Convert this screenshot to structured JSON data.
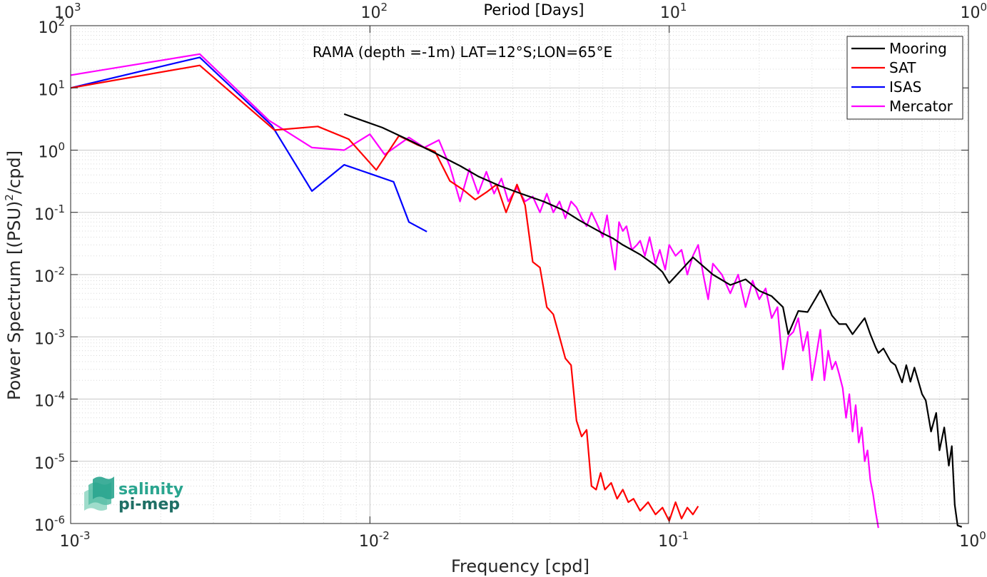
{
  "chart_data": {
    "type": "line",
    "title": "RAMA (depth =-1m) LAT=12°S;LON=65°E",
    "xlabel": "Frequency [cpd]",
    "ylabel": "Power Spectrum [(PSU)²/cpd]",
    "ylabel_parts": {
      "pre": "Power Spectrum [(PSU)",
      "sup": "2",
      "post": "/cpd]"
    },
    "x2label": "Period [Days]",
    "xscale": "log",
    "yscale": "log",
    "xlim": [
      0.001,
      1
    ],
    "ylim": [
      1e-06,
      100
    ],
    "x_ticks": [
      {
        "base": "10",
        "exp": "-3"
      },
      {
        "base": "10",
        "exp": "-2"
      },
      {
        "base": "10",
        "exp": "-1"
      },
      {
        "base": "10",
        "exp": "0"
      }
    ],
    "y_ticks": [
      {
        "base": "10",
        "exp": "-6"
      },
      {
        "base": "10",
        "exp": "-5"
      },
      {
        "base": "10",
        "exp": "-4"
      },
      {
        "base": "10",
        "exp": "-3"
      },
      {
        "base": "10",
        "exp": "-2"
      },
      {
        "base": "10",
        "exp": "-1"
      },
      {
        "base": "10",
        "exp": "0"
      },
      {
        "base": "10",
        "exp": "1"
      },
      {
        "base": "10",
        "exp": "2"
      }
    ],
    "x2_ticks": [
      {
        "base": "10",
        "exp": "3"
      },
      {
        "base": "10",
        "exp": "2"
      },
      {
        "base": "10",
        "exp": "1"
      },
      {
        "base": "10",
        "exp": "0"
      }
    ],
    "grid": true,
    "legend_position": "top-right",
    "series": [
      {
        "name": "Mooring",
        "color": "#000000",
        "x": [
          0.0082,
          0.011,
          0.0135,
          0.0165,
          0.02,
          0.023,
          0.027,
          0.032,
          0.038,
          0.044,
          0.05,
          0.055,
          0.06,
          0.065,
          0.07,
          0.075,
          0.08,
          0.085,
          0.09,
          0.095,
          0.1,
          0.11,
          0.12,
          0.14,
          0.16,
          0.18,
          0.2,
          0.22,
          0.24,
          0.25,
          0.27,
          0.29,
          0.32,
          0.35,
          0.37,
          0.39,
          0.41,
          0.43,
          0.45,
          0.47,
          0.49,
          0.5,
          0.52,
          0.55,
          0.57,
          0.6,
          0.62,
          0.64,
          0.66,
          0.7,
          0.72,
          0.75,
          0.78,
          0.8,
          0.83,
          0.86,
          0.88,
          0.9,
          0.92,
          0.95
        ],
        "y": [
          3.8,
          2.3,
          1.45,
          0.9,
          0.56,
          0.38,
          0.27,
          0.2,
          0.15,
          0.11,
          0.075,
          0.058,
          0.046,
          0.038,
          0.03,
          0.025,
          0.021,
          0.017,
          0.014,
          0.011,
          0.0073,
          0.012,
          0.019,
          0.01,
          0.0068,
          0.0084,
          0.0055,
          0.0045,
          0.003,
          0.0011,
          0.0026,
          0.0025,
          0.0056,
          0.0022,
          0.0016,
          0.0016,
          0.0011,
          0.0015,
          0.002,
          0.0011,
          0.00067,
          0.00055,
          0.00065,
          0.0004,
          0.00035,
          0.000185,
          0.00035,
          0.00019,
          0.00032,
          0.00012,
          9.5e-05,
          3e-05,
          6e-05,
          1.5e-05,
          3.5e-05,
          8.5e-06,
          1.75e-05,
          2e-06,
          9.3e-07,
          8.8e-07
        ]
      },
      {
        "name": "SAT",
        "color": "#ff0000",
        "x": [
          0.001,
          0.0027,
          0.0048,
          0.0067,
          0.0085,
          0.0105,
          0.0125,
          0.0145,
          0.0165,
          0.0185,
          0.0205,
          0.0225,
          0.0245,
          0.0265,
          0.0285,
          0.031,
          0.033,
          0.035,
          0.037,
          0.039,
          0.041,
          0.043,
          0.045,
          0.047,
          0.049,
          0.051,
          0.053,
          0.055,
          0.057,
          0.059,
          0.061,
          0.064,
          0.067,
          0.07,
          0.073,
          0.076,
          0.08,
          0.085,
          0.09,
          0.095,
          0.1,
          0.105,
          0.11,
          0.115,
          0.12,
          0.125
        ],
        "y": [
          10,
          23,
          2.1,
          2.4,
          1.5,
          0.48,
          1.7,
          1.2,
          0.95,
          0.32,
          0.23,
          0.16,
          0.21,
          0.28,
          0.1,
          0.28,
          0.13,
          0.016,
          0.013,
          0.003,
          0.0023,
          0.001,
          0.00045,
          0.00035,
          4.5e-05,
          2.5e-05,
          3.2e-05,
          4e-06,
          3.5e-06,
          6.5e-06,
          3.5e-06,
          4.5e-06,
          2.5e-06,
          3.5e-06,
          2.2e-06,
          2.5e-06,
          1.6e-06,
          2.2e-06,
          1.4e-06,
          1.8e-06,
          1.1e-06,
          2.2e-06,
          1.2e-06,
          1.8e-06,
          1.4e-06,
          1.9e-06
        ]
      },
      {
        "name": "ISAS",
        "color": "#0000ff",
        "x": [
          0.001,
          0.0027,
          0.0047,
          0.0064,
          0.0082,
          0.01,
          0.012,
          0.0135,
          0.0155
        ],
        "y": [
          10,
          31,
          2.5,
          0.22,
          0.58,
          0.42,
          0.31,
          0.07,
          0.049
        ]
      },
      {
        "name": "Mercator",
        "color": "#ff00ff",
        "x": [
          0.001,
          0.0027,
          0.0046,
          0.0064,
          0.0082,
          0.01,
          0.0112,
          0.0135,
          0.0152,
          0.017,
          0.0185,
          0.02,
          0.0215,
          0.023,
          0.0245,
          0.026,
          0.0275,
          0.029,
          0.031,
          0.033,
          0.035,
          0.037,
          0.039,
          0.041,
          0.043,
          0.045,
          0.047,
          0.049,
          0.051,
          0.053,
          0.055,
          0.057,
          0.06,
          0.062,
          0.064,
          0.066,
          0.068,
          0.07,
          0.072,
          0.075,
          0.078,
          0.08,
          0.083,
          0.086,
          0.09,
          0.093,
          0.097,
          0.1,
          0.105,
          0.11,
          0.115,
          0.12,
          0.125,
          0.13,
          0.135,
          0.14,
          0.15,
          0.16,
          0.17,
          0.18,
          0.19,
          0.2,
          0.21,
          0.22,
          0.23,
          0.24,
          0.25,
          0.26,
          0.27,
          0.28,
          0.29,
          0.3,
          0.31,
          0.32,
          0.33,
          0.34,
          0.35,
          0.36,
          0.37,
          0.38,
          0.39,
          0.4,
          0.41,
          0.42,
          0.43,
          0.44,
          0.45,
          0.46,
          0.47,
          0.48,
          0.49,
          0.5
        ],
        "y": [
          16,
          35,
          3.0,
          1.1,
          1.0,
          1.8,
          0.85,
          1.6,
          1.1,
          1.45,
          0.55,
          0.15,
          0.5,
          0.2,
          0.45,
          0.2,
          0.35,
          0.15,
          0.25,
          0.15,
          0.18,
          0.1,
          0.2,
          0.1,
          0.15,
          0.08,
          0.15,
          0.12,
          0.08,
          0.06,
          0.1,
          0.07,
          0.04,
          0.09,
          0.03,
          0.012,
          0.07,
          0.05,
          0.06,
          0.025,
          0.03,
          0.035,
          0.02,
          0.04,
          0.015,
          0.025,
          0.012,
          0.03,
          0.02,
          0.025,
          0.01,
          0.02,
          0.03,
          0.01,
          0.004,
          0.015,
          0.01,
          0.005,
          0.01,
          0.003,
          0.008,
          0.004,
          0.006,
          0.002,
          0.003,
          0.0003,
          0.001,
          0.0012,
          0.002,
          0.0006,
          0.0012,
          0.0002,
          0.0005,
          0.0013,
          0.0002,
          0.0006,
          0.0003,
          0.0004,
          0.00025,
          0.00015,
          5e-05,
          0.00012,
          3e-05,
          8e-05,
          2e-05,
          3.5e-05,
          1e-05,
          1.5e-05,
          5e-06,
          3e-06,
          1.5e-06,
          8.5e-07
        ]
      }
    ]
  },
  "logo": {
    "line1": "salinity",
    "line2": "pi-mep"
  },
  "colors": {
    "grid_minor": "#d9d9d9",
    "grid_major": "#c8c8c8",
    "axis": "#262626",
    "logo_accent": "#2aa58f"
  }
}
